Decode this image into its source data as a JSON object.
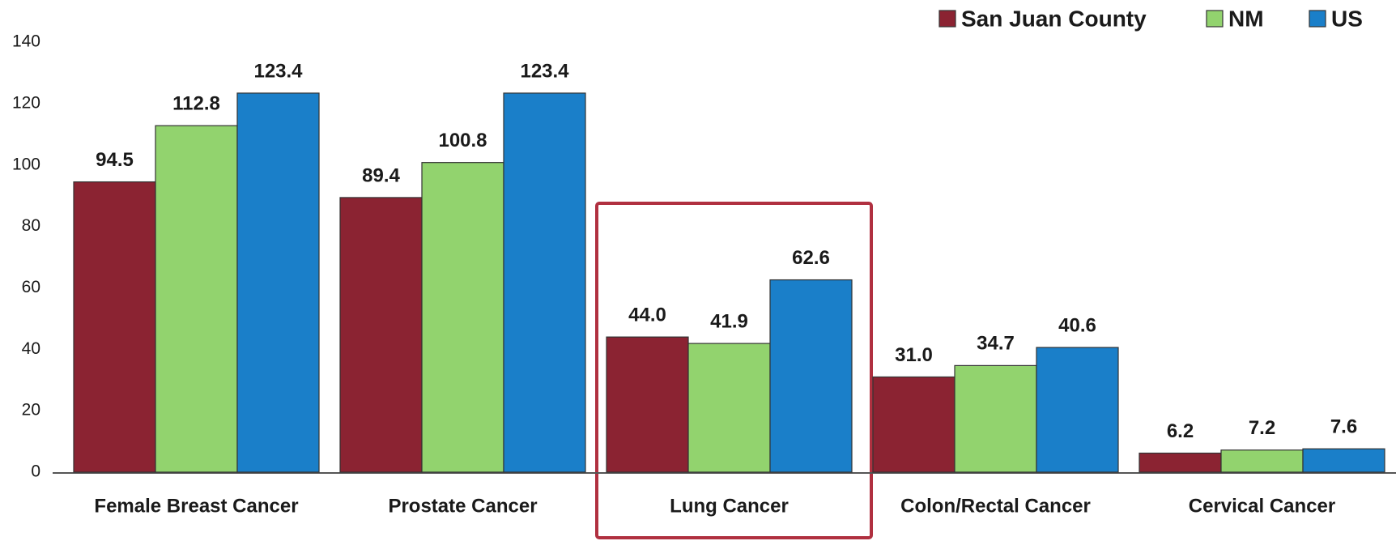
{
  "chart_data": {
    "type": "bar",
    "categories": [
      "Female Breast Cancer",
      "Prostate Cancer",
      "Lung Cancer",
      "Colon/Rectal Cancer",
      "Cervical Cancer"
    ],
    "series": [
      {
        "name": "San Juan County",
        "color": "#8b2332",
        "values": [
          94.5,
          89.4,
          44.0,
          31.0,
          6.2
        ],
        "value_labels": [
          "94.5",
          "89.4",
          "44.0",
          "31.0",
          "6.2"
        ]
      },
      {
        "name": "NM",
        "color": "#92d36e",
        "values": [
          112.8,
          100.8,
          41.9,
          34.7,
          7.2
        ],
        "value_labels": [
          "112.8",
          "100.8",
          "41.9",
          "34.7",
          "7.2"
        ]
      },
      {
        "name": "US",
        "color": "#1a7fc9",
        "values": [
          123.4,
          123.4,
          62.6,
          40.6,
          7.6
        ],
        "value_labels": [
          "123.4",
          "123.4",
          "62.6",
          "40.6",
          "7.6"
        ]
      }
    ],
    "ylim": [
      0,
      140
    ],
    "yticks": [
      0,
      20,
      40,
      60,
      80,
      100,
      120,
      140
    ],
    "legend": "top-right"
  }
}
